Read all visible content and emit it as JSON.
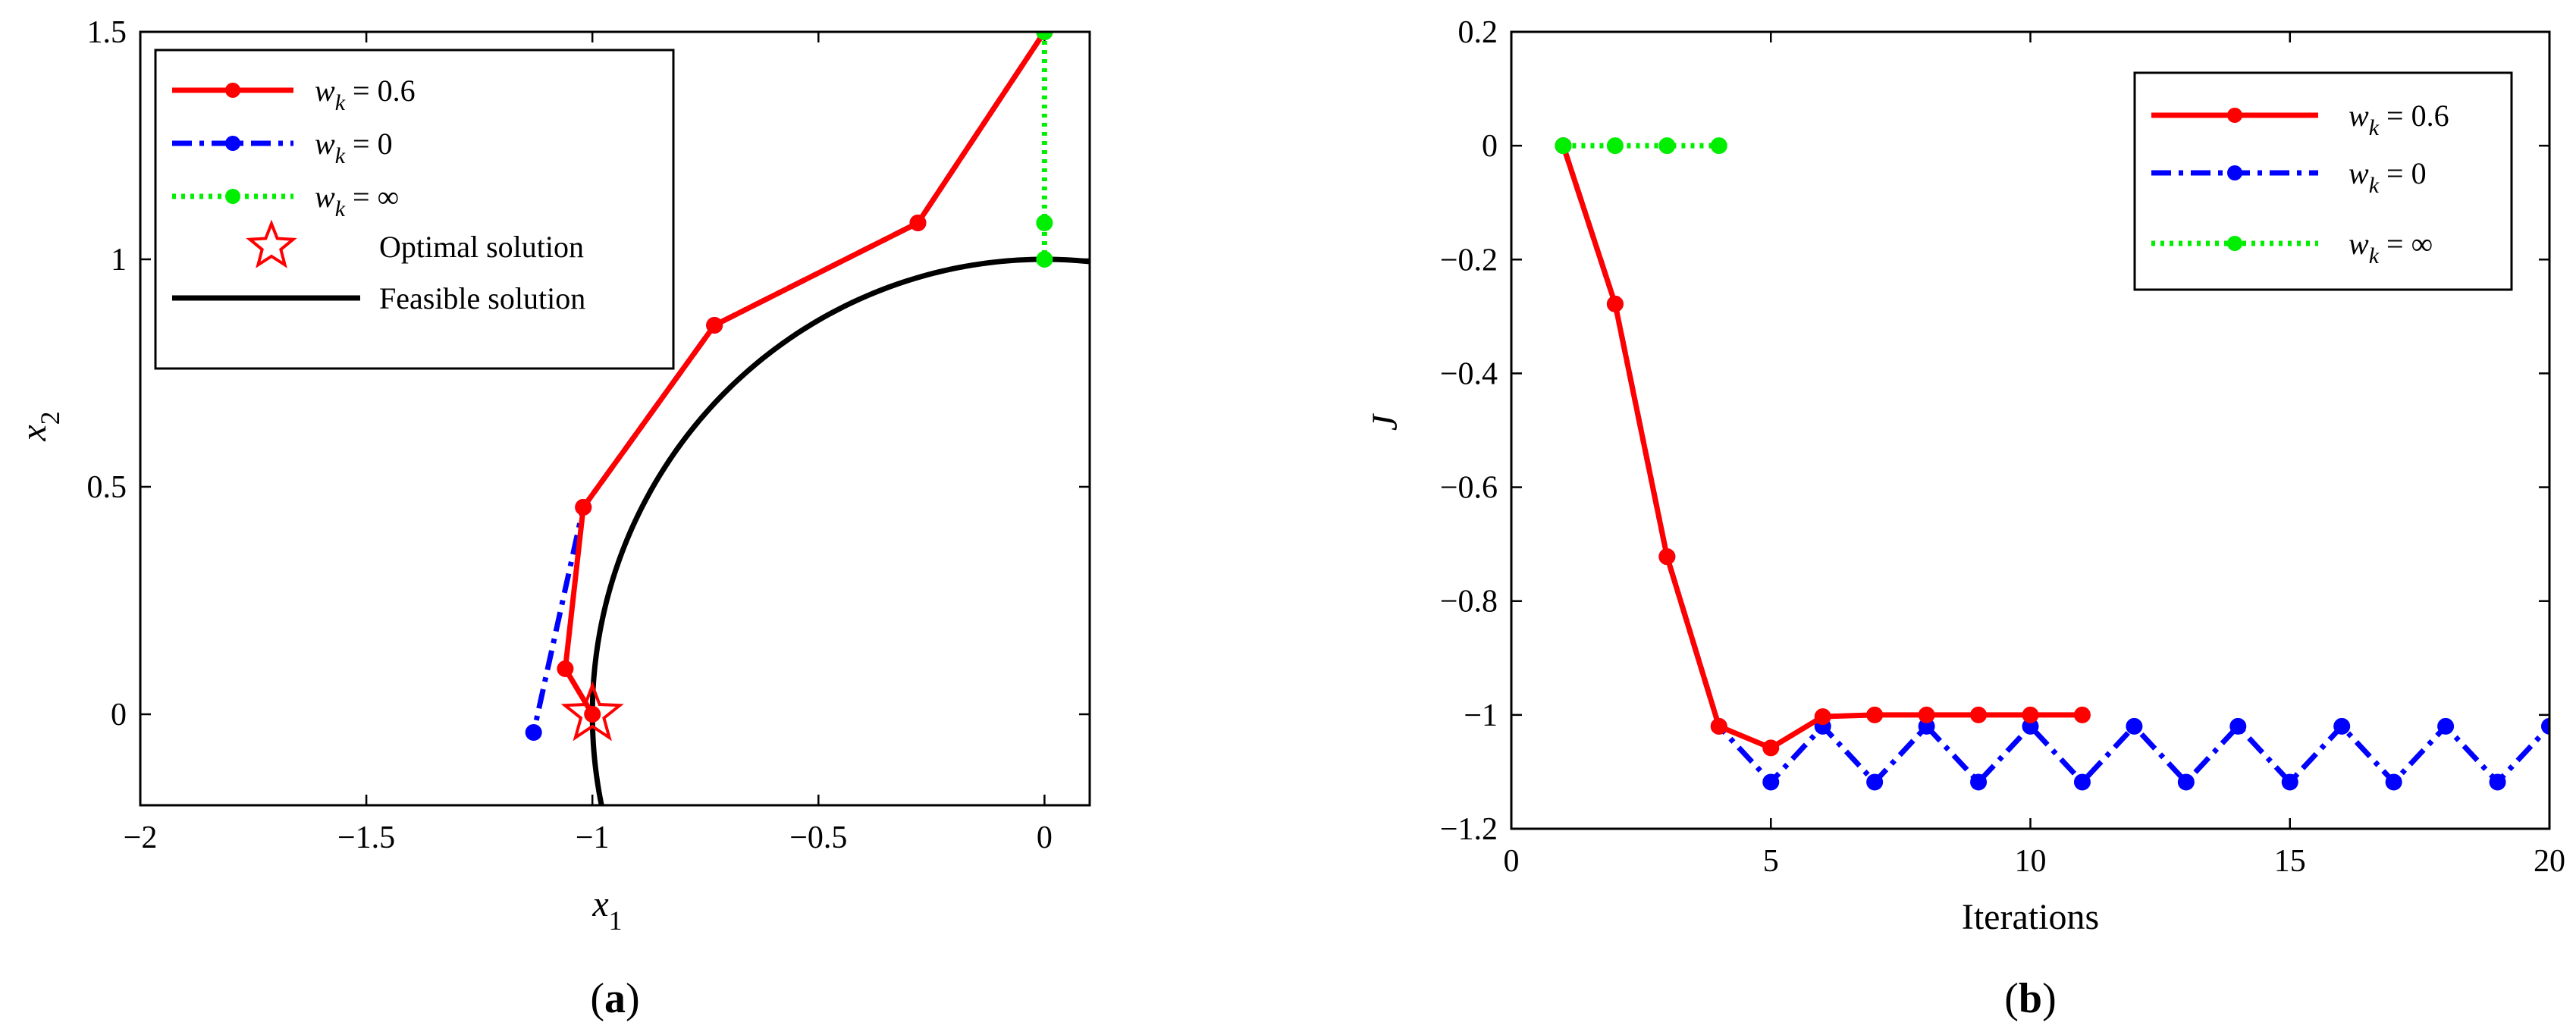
{
  "chart_data": [
    {
      "type": "line",
      "panel_label": "(a)",
      "xlabel": "x",
      "xlabel_sub": "1",
      "ylabel": "x",
      "ylabel_sub": "2",
      "xlim": [
        -2,
        0.1
      ],
      "ylim": [
        -0.2,
        1.5
      ],
      "xticks": [
        -2,
        -1.5,
        -1,
        -0.5,
        0
      ],
      "xtick_labels": [
        "−2",
        "−1.5",
        "−1",
        "−0.5",
        "0"
      ],
      "yticks": [
        0,
        0.5,
        1,
        1.5
      ],
      "ytick_labels": [
        "0",
        "0.5",
        "1",
        "1.5"
      ],
      "legend_position": "top-left",
      "series": [
        {
          "name": "w",
          "name_sub": "k",
          "name_rest": "= 0.6",
          "color": "#ff0000",
          "style": "solid",
          "x": [
            0,
            -0.28,
            -0.73,
            -1.02,
            -1.06,
            -1.0
          ],
          "y": [
            1.5,
            1.08,
            0.855,
            0.455,
            0.1,
            0.0
          ]
        },
        {
          "name": "w",
          "name_sub": "k",
          "name_rest": "= 0",
          "color": "#0000ff",
          "style": "dashdot",
          "x": [
            0,
            -0.28,
            -0.73,
            -1.02,
            -1.13
          ],
          "y": [
            1.5,
            1.08,
            0.855,
            0.455,
            -0.04
          ]
        },
        {
          "name": "w",
          "name_sub": "k",
          "name_rest": "= ∞",
          "color": "#00ee00",
          "style": "dotted",
          "x": [
            0,
            0,
            0
          ],
          "y": [
            1.5,
            1.08,
            1.0
          ]
        }
      ],
      "optimal_solution": {
        "name": "Optimal solution",
        "x": -1.0,
        "y": 0.0,
        "color": "#ff0000",
        "marker": "star"
      },
      "feasible_solution": {
        "name": "Feasible solution",
        "color": "#000000",
        "shape": "unit circle arc",
        "radius": 1
      }
    },
    {
      "type": "line",
      "panel_label": "(b)",
      "xlabel": "Iterations",
      "ylabel": "J",
      "xlim": [
        0,
        20
      ],
      "ylim": [
        -1.2,
        0.2
      ],
      "xticks": [
        0,
        5,
        10,
        15,
        20
      ],
      "xtick_labels": [
        "0",
        "5",
        "10",
        "15",
        "20"
      ],
      "yticks": [
        -1.2,
        -1,
        -0.8,
        -0.6,
        -0.4,
        -0.2,
        0,
        0.2
      ],
      "ytick_labels": [
        "−1.2",
        "−1",
        "−0.8",
        "−0.6",
        "−0.4",
        "−0.2",
        "0",
        "0.2"
      ],
      "legend_position": "top-right",
      "series": [
        {
          "name": "w",
          "name_sub": "k",
          "name_rest": "= 0.6",
          "color": "#ff0000",
          "style": "solid",
          "x": [
            1,
            2,
            3,
            4,
            5,
            6,
            7,
            8,
            9,
            10,
            11
          ],
          "y": [
            0,
            -0.278,
            -0.722,
            -1.02,
            -1.058,
            -1.003,
            -1.0,
            -1.0,
            -1.0,
            -1.0,
            -1.0
          ]
        },
        {
          "name": "w",
          "name_sub": "k",
          "name_rest": "= 0",
          "color": "#0000ff",
          "style": "dashdot",
          "x": [
            1,
            2,
            3,
            4,
            5,
            6,
            7,
            8,
            9,
            10,
            11,
            12,
            13,
            14,
            15,
            16,
            17,
            18,
            19,
            20
          ],
          "y": [
            0,
            -0.278,
            -0.722,
            -1.02,
            -1.118,
            -1.02,
            -1.118,
            -1.02,
            -1.118,
            -1.02,
            -1.118,
            -1.02,
            -1.118,
            -1.02,
            -1.118,
            -1.02,
            -1.118,
            -1.02,
            -1.118,
            -1.02
          ]
        },
        {
          "name": "w",
          "name_sub": "k",
          "name_rest": "= ∞",
          "color": "#00ee00",
          "style": "dotted",
          "x": [
            1,
            2,
            3,
            4
          ],
          "y": [
            0,
            0,
            0,
            0
          ]
        }
      ]
    }
  ]
}
